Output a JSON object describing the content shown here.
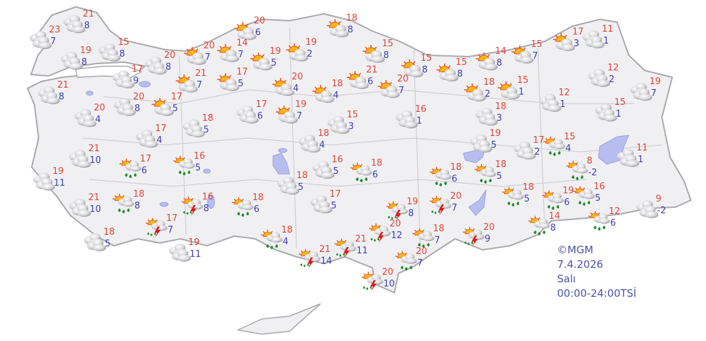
{
  "map": {
    "colors": {
      "land": "#f0f0f2",
      "border": "#a8a8ae",
      "sea": "#ffffff",
      "lake": "#b8bdf0",
      "high": "#e0453a",
      "low": "#3d3db8"
    },
    "stations": [
      {
        "icon": "cloudy",
        "high": "21",
        "low": "8"
      },
      {
        "icon": "cloudy",
        "high": "23",
        "low": "7"
      },
      {
        "icon": "cloudy",
        "high": "15",
        "low": "8"
      },
      {
        "icon": "cloudy",
        "high": "19",
        "low": "8"
      },
      {
        "icon": "cloudy",
        "high": "17",
        "low": "9"
      },
      {
        "icon": "cloudy",
        "high": "20",
        "low": "8"
      },
      {
        "icon": "cloudy",
        "high": "21",
        "low": "8"
      },
      {
        "icon": "cloudy",
        "high": "20",
        "low": "8"
      },
      {
        "icon": "partly-sunny",
        "high": "17",
        "low": "5"
      },
      {
        "icon": "cloudy",
        "high": "20",
        "low": "4"
      },
      {
        "icon": "cloudy",
        "high": "17",
        "low": "4"
      },
      {
        "icon": "cloudy",
        "high": "21",
        "low": "10"
      },
      {
        "icon": "cloudy",
        "high": "19",
        "low": "11"
      },
      {
        "icon": "cloudy",
        "high": "21",
        "low": "10"
      },
      {
        "icon": "cloudy",
        "high": "18",
        "low": "5"
      },
      {
        "icon": "cloudy",
        "high": "19",
        "low": "11"
      },
      {
        "icon": "sun-rain",
        "high": "17",
        "low": "6"
      },
      {
        "icon": "sun-rain",
        "high": "16",
        "low": "5"
      },
      {
        "icon": "sun-rain",
        "high": "18",
        "low": "8"
      },
      {
        "icon": "thunderstorm",
        "high": "16",
        "low": "8"
      },
      {
        "icon": "thunderstorm",
        "high": "17",
        "low": "7"
      },
      {
        "icon": "sun-rain",
        "high": "18",
        "low": "6"
      },
      {
        "icon": "sun-rain",
        "high": "18",
        "low": "4"
      },
      {
        "icon": "thunderstorm",
        "high": "21",
        "low": "14"
      },
      {
        "icon": "partly-sunny",
        "high": "20",
        "low": "6"
      },
      {
        "icon": "partly-sunny",
        "high": "20",
        "low": "7"
      },
      {
        "icon": "partly-sunny",
        "high": "14",
        "low": "7"
      },
      {
        "icon": "partly-sunny",
        "high": "19",
        "low": "5"
      },
      {
        "icon": "partly-sunny",
        "high": "19",
        "low": "2"
      },
      {
        "icon": "partly-sunny",
        "high": "21",
        "low": "7"
      },
      {
        "icon": "partly-sunny",
        "high": "17",
        "low": "5"
      },
      {
        "icon": "partly-sunny",
        "high": "20",
        "low": "4"
      },
      {
        "icon": "partly-sunny",
        "high": "18",
        "low": "4"
      },
      {
        "icon": "cloudy",
        "high": "17",
        "low": "6"
      },
      {
        "icon": "partly-sunny",
        "high": "19",
        "low": "7"
      },
      {
        "icon": "cloudy",
        "high": "18",
        "low": "5"
      },
      {
        "icon": "cloudy",
        "high": "18",
        "low": "4"
      },
      {
        "icon": "cloudy",
        "high": "16",
        "low": "5"
      },
      {
        "icon": "cloudy",
        "high": "18",
        "low": "5"
      },
      {
        "icon": "cloudy",
        "high": "17",
        "low": "5"
      },
      {
        "icon": "partly-sunny",
        "high": "18",
        "low": "8"
      },
      {
        "icon": "partly-sunny",
        "high": "15",
        "low": "8"
      },
      {
        "icon": "partly-sunny",
        "high": "15",
        "low": "8"
      },
      {
        "icon": "partly-sunny",
        "high": "15",
        "low": "8"
      },
      {
        "icon": "partly-sunny",
        "high": "14",
        "low": "8"
      },
      {
        "icon": "partly-sunny",
        "high": "15",
        "low": "7"
      },
      {
        "icon": "partly-sunny",
        "high": "17",
        "low": "3"
      },
      {
        "icon": "cloudy",
        "high": "11",
        "low": "1"
      },
      {
        "icon": "partly-sunny",
        "high": "21",
        "low": "6"
      },
      {
        "icon": "partly-sunny",
        "high": "20",
        "low": "7"
      },
      {
        "icon": "cloudy",
        "high": "15",
        "low": "3"
      },
      {
        "icon": "cloudy",
        "high": "16",
        "low": "1"
      },
      {
        "icon": "partly-sunny",
        "high": "18",
        "low": "2"
      },
      {
        "icon": "partly-sunny",
        "high": "15",
        "low": "1"
      },
      {
        "icon": "cloudy",
        "high": "18",
        "low": "3"
      },
      {
        "icon": "cloudy",
        "high": "12",
        "low": "1"
      },
      {
        "icon": "cloudy",
        "high": "12",
        "low": "2"
      },
      {
        "icon": "cloudy",
        "high": "19",
        "low": "7"
      },
      {
        "icon": "cloudy",
        "high": "15",
        "low": "1"
      },
      {
        "icon": "cloudy",
        "high": "19",
        "low": "5"
      },
      {
        "icon": "cloudy",
        "high": "17",
        "low": "2"
      },
      {
        "icon": "sun-rain",
        "high": "15",
        "low": "4"
      },
      {
        "icon": "cloudy",
        "high": "11",
        "low": "1"
      },
      {
        "icon": "sun-rain",
        "high": "8",
        "low": "-2"
      },
      {
        "icon": "sun-rain",
        "high": "18",
        "low": "6"
      },
      {
        "icon": "sun-rain",
        "high": "18",
        "low": "6"
      },
      {
        "icon": "sun-rain",
        "high": "18",
        "low": "5"
      },
      {
        "icon": "sun-rain",
        "high": "18",
        "low": "5"
      },
      {
        "icon": "sun-rain",
        "high": "19",
        "low": "6"
      },
      {
        "icon": "sun-rain",
        "high": "16",
        "low": "5"
      },
      {
        "icon": "cloudy",
        "high": "9",
        "low": "-2"
      },
      {
        "icon": "sun-rain",
        "high": "12",
        "low": "6"
      },
      {
        "icon": "sun-rain",
        "high": "14",
        "low": "8"
      },
      {
        "icon": "thunderstorm",
        "high": "19",
        "low": "8"
      },
      {
        "icon": "thunderstorm",
        "high": "20",
        "low": "7"
      },
      {
        "icon": "thunderstorm",
        "high": "20",
        "low": "12"
      },
      {
        "icon": "sun-rain",
        "high": "18",
        "low": "7"
      },
      {
        "icon": "thunderstorm",
        "high": "20",
        "low": "9"
      },
      {
        "icon": "thunderstorm",
        "high": "21",
        "low": "11"
      },
      {
        "icon": "sun-rain",
        "high": "20",
        "low": "7"
      },
      {
        "icon": "thunderstorm",
        "high": "20",
        "low": "10"
      }
    ]
  },
  "legend": {
    "copyright": "©MGM",
    "date": "7.4.2026",
    "day": "Salı",
    "period": "00:00-24:00TSİ"
  }
}
